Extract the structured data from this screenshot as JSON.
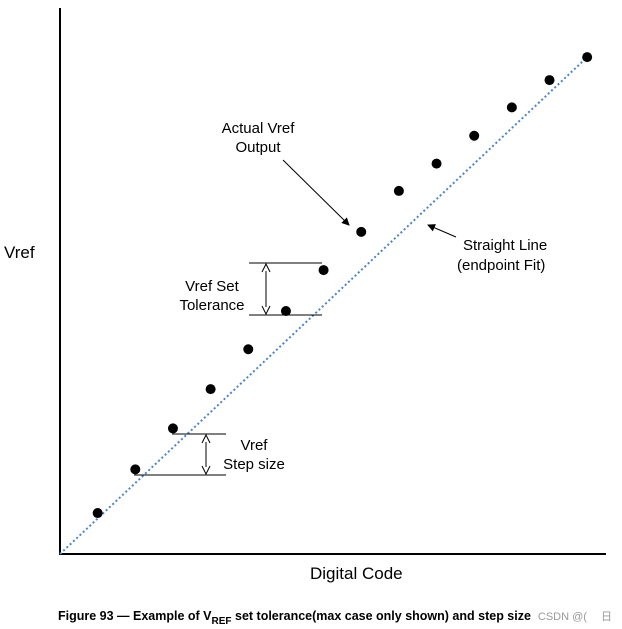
{
  "axes": {
    "y_label": "Vref",
    "x_label": "Digital Code"
  },
  "annotations": {
    "actual_line1": "Actual Vref",
    "actual_line2": "Output",
    "straight_line1": "Straight Line",
    "straight_line2": "(endpoint Fit)",
    "tolerance_line1": "Vref Set",
    "tolerance_line2": "Tolerance",
    "step_line1": "Vref",
    "step_line2": "Step size"
  },
  "caption": {
    "prefix": "Figure 93 — Example of V",
    "subscript": "REF",
    "suffix": " set tolerance(max case only shown) and step size"
  },
  "watermark": "CSDN @(  日",
  "chart_data": {
    "type": "scatter",
    "x": [
      1,
      2,
      3,
      4,
      5,
      6,
      7,
      8,
      9,
      10,
      11,
      12,
      13,
      14
    ],
    "y": [
      0.75,
      1.55,
      2.3,
      3.02,
      3.75,
      4.45,
      5.2,
      5.9,
      6.65,
      7.15,
      7.66,
      8.18,
      8.68,
      9.1
    ],
    "reference_line": {
      "from": [
        0,
        0
      ],
      "to": [
        14,
        9.1
      ],
      "style": "dotted",
      "color": "#4a86c8"
    },
    "xlim": [
      0,
      14.5
    ],
    "ylim": [
      0,
      10
    ],
    "xlabel": "Digital Code",
    "ylabel": "Vref",
    "point_color": "#000000"
  }
}
